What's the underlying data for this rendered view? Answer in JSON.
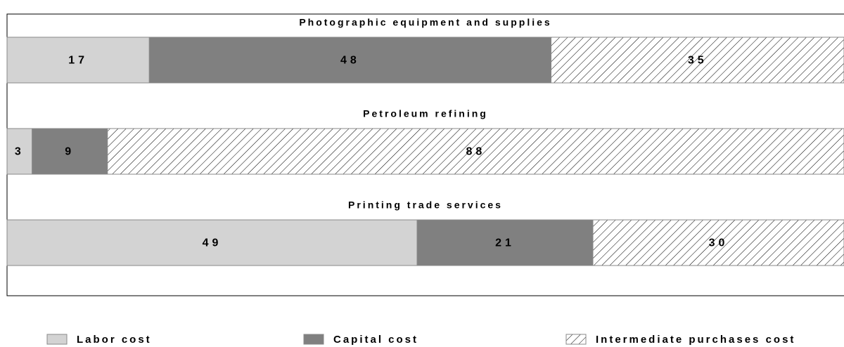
{
  "chart_data": {
    "type": "bar",
    "orientation": "horizontal",
    "stacked": true,
    "categories": [
      "Photographic equipment and supplies",
      "Petroleum refining",
      "Printing trade services"
    ],
    "series": [
      {
        "name": "Labor cost",
        "color": "#d3d3d3",
        "values": [
          17,
          3,
          49
        ]
      },
      {
        "name": "Capital cost",
        "color": "#808080",
        "values": [
          48,
          9,
          21
        ]
      },
      {
        "name": "Intermediate purchases cost",
        "color": "#ffffff",
        "pattern": "hatch",
        "values": [
          35,
          88,
          30
        ]
      }
    ],
    "xlim": [
      0,
      100
    ],
    "legend": "bottom"
  }
}
